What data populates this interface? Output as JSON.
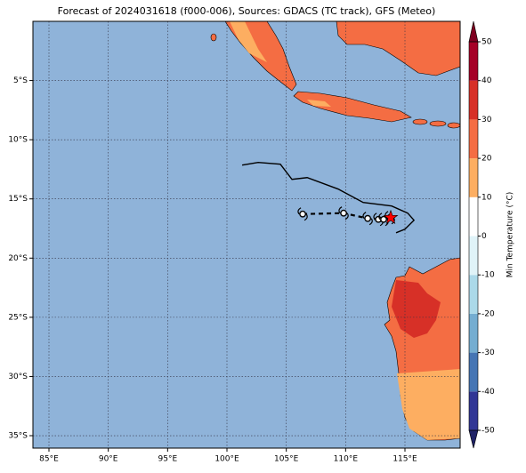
{
  "chart_data": {
    "type": "map",
    "title": "Forecast of 2024031618 (f000-006), Sources: GDACS (TC track), GFS (Meteo)",
    "xlim": [
      83.65,
      119.65
    ],
    "ylim": [
      -36.05,
      0
    ],
    "xticks": [
      {
        "value": 85,
        "label": "85°E"
      },
      {
        "value": 90,
        "label": "90°E"
      },
      {
        "value": 95,
        "label": "95°E"
      },
      {
        "value": 100,
        "label": "100°E"
      },
      {
        "value": 105,
        "label": "105°E"
      },
      {
        "value": 110,
        "label": "110°E"
      },
      {
        "value": 115,
        "label": "115°E"
      }
    ],
    "yticks": [
      {
        "value": -5,
        "label": "5°S"
      },
      {
        "value": -10,
        "label": "10°S"
      },
      {
        "value": -15,
        "label": "15°S"
      },
      {
        "value": -20,
        "label": "20°S"
      },
      {
        "value": -25,
        "label": "25°S"
      },
      {
        "value": -30,
        "label": "30°S"
      },
      {
        "value": -35,
        "label": "35°S"
      }
    ],
    "grid": true,
    "sea_color": "#8fb3d9",
    "track": {
      "color": "#000000",
      "x": [
        101.28,
        102.63,
        104.5,
        105.48,
        106.76,
        109.38,
        111.48,
        113.88,
        115.23,
        115.76,
        115.0,
        114.25
      ],
      "y": [
        -12.14,
        -11.92,
        -12.07,
        -13.35,
        -13.2,
        -14.17,
        -15.3,
        -15.6,
        -16.2,
        -16.8,
        -17.56,
        -17.86
      ]
    },
    "forecast_points": {
      "color": "#000000",
      "x": [
        106.38,
        109.83,
        111.86,
        112.76,
        113.2,
        113.73
      ],
      "y": [
        -16.28,
        -16.2,
        -16.65,
        -16.73,
        -16.73,
        -16.58
      ]
    },
    "current_position": {
      "x": 113.8,
      "y": -16.58,
      "color": "#ff0000"
    },
    "colorbar": {
      "label": "Min Temperature (°C)",
      "lim": [
        -50,
        50
      ],
      "ticks": [
        -50,
        -40,
        -30,
        -20,
        -10,
        0,
        10,
        20,
        30,
        40,
        50
      ],
      "colors": [
        "#313695",
        "#4575b4",
        "#74add1",
        "#abd9e9",
        "#e0f3f8",
        "#ffffff",
        "#fdae61",
        "#f46d43",
        "#d73027",
        "#a50026"
      ],
      "under_color": "#1f2266",
      "over_color": "#7f0020"
    }
  }
}
